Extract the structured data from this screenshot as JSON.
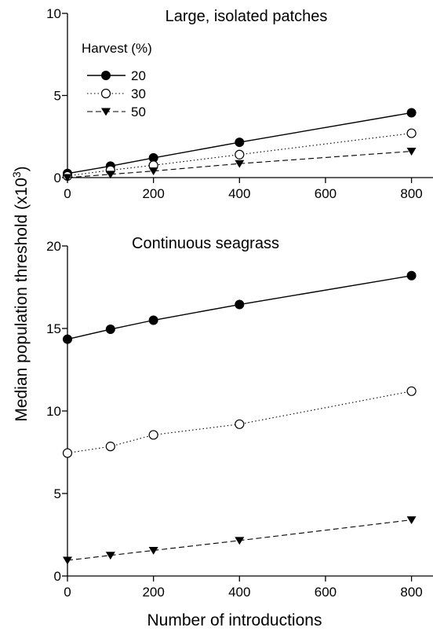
{
  "chart_data": [
    {
      "type": "line",
      "title": "Large, isolated patches",
      "xlim": [
        0,
        850
      ],
      "ylim": [
        0,
        10
      ],
      "xticks": [
        0,
        200,
        400,
        600,
        800
      ],
      "yticks": [
        0,
        5,
        10
      ],
      "legend": {
        "title": "Harvest (%)",
        "placement": "top-left",
        "entries": [
          "20",
          "30",
          "50"
        ]
      },
      "series": [
        {
          "name": "20",
          "marker": "filled-circle",
          "line": "solid",
          "x": [
            0,
            100,
            200,
            400,
            800
          ],
          "y": [
            0.25,
            0.7,
            1.2,
            2.15,
            3.95
          ]
        },
        {
          "name": "30",
          "marker": "open-circle",
          "line": "dotted",
          "x": [
            0,
            100,
            200,
            400,
            800
          ],
          "y": [
            0.1,
            0.45,
            0.75,
            1.4,
            2.7
          ]
        },
        {
          "name": "50",
          "marker": "filled-triangle-down",
          "line": "dashed",
          "x": [
            0,
            100,
            200,
            400,
            800
          ],
          "y": [
            0.0,
            0.2,
            0.4,
            0.85,
            1.6
          ]
        }
      ]
    },
    {
      "type": "line",
      "title": "Continuous seagrass",
      "xlim": [
        0,
        850
      ],
      "ylim": [
        0,
        20
      ],
      "xticks": [
        0,
        200,
        400,
        600,
        800
      ],
      "yticks": [
        0,
        5,
        10,
        15,
        20
      ],
      "series": [
        {
          "name": "20",
          "marker": "filled-circle",
          "line": "solid",
          "x": [
            0,
            100,
            200,
            400,
            800
          ],
          "y": [
            14.35,
            14.95,
            15.5,
            16.45,
            18.2
          ]
        },
        {
          "name": "30",
          "marker": "open-circle",
          "line": "dotted",
          "x": [
            0,
            100,
            200,
            400,
            800
          ],
          "y": [
            7.45,
            7.85,
            8.55,
            9.2,
            11.2
          ]
        },
        {
          "name": "50",
          "marker": "filled-triangle-down",
          "line": "dashed",
          "x": [
            0,
            100,
            200,
            400,
            800
          ],
          "y": [
            0.95,
            1.25,
            1.55,
            2.15,
            3.4
          ]
        }
      ]
    }
  ],
  "shared": {
    "xlabel": "Number of introductions",
    "ylabel_main": "Median population threshold (x10",
    "ylabel_sup": "3",
    "ylabel_end": ")"
  }
}
